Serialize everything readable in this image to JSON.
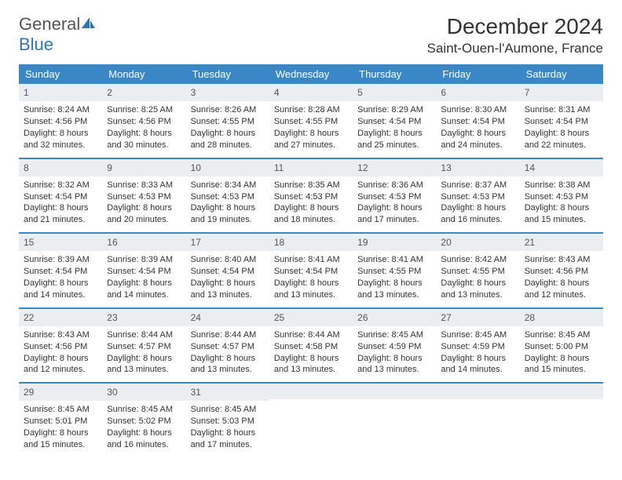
{
  "brand": {
    "part1": "General",
    "part2": "Blue"
  },
  "title": "December 2024",
  "location": "Saint-Ouen-l'Aumone, France",
  "styling": {
    "header_bg": "#3a87c8",
    "header_text": "#ffffff",
    "daynum_bg": "#ebeef0",
    "week_divider": "#3a87c8",
    "body_text": "#333333",
    "page_bg": "#ffffff",
    "title_fontsize": 28,
    "location_fontsize": 17,
    "dow_fontsize": 13,
    "cell_fontsize": 11
  },
  "days_of_week": [
    "Sunday",
    "Monday",
    "Tuesday",
    "Wednesday",
    "Thursday",
    "Friday",
    "Saturday"
  ],
  "weeks": [
    [
      {
        "n": "1",
        "sunrise": "Sunrise: 8:24 AM",
        "sunset": "Sunset: 4:56 PM",
        "dl1": "Daylight: 8 hours",
        "dl2": "and 32 minutes."
      },
      {
        "n": "2",
        "sunrise": "Sunrise: 8:25 AM",
        "sunset": "Sunset: 4:56 PM",
        "dl1": "Daylight: 8 hours",
        "dl2": "and 30 minutes."
      },
      {
        "n": "3",
        "sunrise": "Sunrise: 8:26 AM",
        "sunset": "Sunset: 4:55 PM",
        "dl1": "Daylight: 8 hours",
        "dl2": "and 28 minutes."
      },
      {
        "n": "4",
        "sunrise": "Sunrise: 8:28 AM",
        "sunset": "Sunset: 4:55 PM",
        "dl1": "Daylight: 8 hours",
        "dl2": "and 27 minutes."
      },
      {
        "n": "5",
        "sunrise": "Sunrise: 8:29 AM",
        "sunset": "Sunset: 4:54 PM",
        "dl1": "Daylight: 8 hours",
        "dl2": "and 25 minutes."
      },
      {
        "n": "6",
        "sunrise": "Sunrise: 8:30 AM",
        "sunset": "Sunset: 4:54 PM",
        "dl1": "Daylight: 8 hours",
        "dl2": "and 24 minutes."
      },
      {
        "n": "7",
        "sunrise": "Sunrise: 8:31 AM",
        "sunset": "Sunset: 4:54 PM",
        "dl1": "Daylight: 8 hours",
        "dl2": "and 22 minutes."
      }
    ],
    [
      {
        "n": "8",
        "sunrise": "Sunrise: 8:32 AM",
        "sunset": "Sunset: 4:54 PM",
        "dl1": "Daylight: 8 hours",
        "dl2": "and 21 minutes."
      },
      {
        "n": "9",
        "sunrise": "Sunrise: 8:33 AM",
        "sunset": "Sunset: 4:53 PM",
        "dl1": "Daylight: 8 hours",
        "dl2": "and 20 minutes."
      },
      {
        "n": "10",
        "sunrise": "Sunrise: 8:34 AM",
        "sunset": "Sunset: 4:53 PM",
        "dl1": "Daylight: 8 hours",
        "dl2": "and 19 minutes."
      },
      {
        "n": "11",
        "sunrise": "Sunrise: 8:35 AM",
        "sunset": "Sunset: 4:53 PM",
        "dl1": "Daylight: 8 hours",
        "dl2": "and 18 minutes."
      },
      {
        "n": "12",
        "sunrise": "Sunrise: 8:36 AM",
        "sunset": "Sunset: 4:53 PM",
        "dl1": "Daylight: 8 hours",
        "dl2": "and 17 minutes."
      },
      {
        "n": "13",
        "sunrise": "Sunrise: 8:37 AM",
        "sunset": "Sunset: 4:53 PM",
        "dl1": "Daylight: 8 hours",
        "dl2": "and 16 minutes."
      },
      {
        "n": "14",
        "sunrise": "Sunrise: 8:38 AM",
        "sunset": "Sunset: 4:53 PM",
        "dl1": "Daylight: 8 hours",
        "dl2": "and 15 minutes."
      }
    ],
    [
      {
        "n": "15",
        "sunrise": "Sunrise: 8:39 AM",
        "sunset": "Sunset: 4:54 PM",
        "dl1": "Daylight: 8 hours",
        "dl2": "and 14 minutes."
      },
      {
        "n": "16",
        "sunrise": "Sunrise: 8:39 AM",
        "sunset": "Sunset: 4:54 PM",
        "dl1": "Daylight: 8 hours",
        "dl2": "and 14 minutes."
      },
      {
        "n": "17",
        "sunrise": "Sunrise: 8:40 AM",
        "sunset": "Sunset: 4:54 PM",
        "dl1": "Daylight: 8 hours",
        "dl2": "and 13 minutes."
      },
      {
        "n": "18",
        "sunrise": "Sunrise: 8:41 AM",
        "sunset": "Sunset: 4:54 PM",
        "dl1": "Daylight: 8 hours",
        "dl2": "and 13 minutes."
      },
      {
        "n": "19",
        "sunrise": "Sunrise: 8:41 AM",
        "sunset": "Sunset: 4:55 PM",
        "dl1": "Daylight: 8 hours",
        "dl2": "and 13 minutes."
      },
      {
        "n": "20",
        "sunrise": "Sunrise: 8:42 AM",
        "sunset": "Sunset: 4:55 PM",
        "dl1": "Daylight: 8 hours",
        "dl2": "and 13 minutes."
      },
      {
        "n": "21",
        "sunrise": "Sunrise: 8:43 AM",
        "sunset": "Sunset: 4:56 PM",
        "dl1": "Daylight: 8 hours",
        "dl2": "and 12 minutes."
      }
    ],
    [
      {
        "n": "22",
        "sunrise": "Sunrise: 8:43 AM",
        "sunset": "Sunset: 4:56 PM",
        "dl1": "Daylight: 8 hours",
        "dl2": "and 12 minutes."
      },
      {
        "n": "23",
        "sunrise": "Sunrise: 8:44 AM",
        "sunset": "Sunset: 4:57 PM",
        "dl1": "Daylight: 8 hours",
        "dl2": "and 13 minutes."
      },
      {
        "n": "24",
        "sunrise": "Sunrise: 8:44 AM",
        "sunset": "Sunset: 4:57 PM",
        "dl1": "Daylight: 8 hours",
        "dl2": "and 13 minutes."
      },
      {
        "n": "25",
        "sunrise": "Sunrise: 8:44 AM",
        "sunset": "Sunset: 4:58 PM",
        "dl1": "Daylight: 8 hours",
        "dl2": "and 13 minutes."
      },
      {
        "n": "26",
        "sunrise": "Sunrise: 8:45 AM",
        "sunset": "Sunset: 4:59 PM",
        "dl1": "Daylight: 8 hours",
        "dl2": "and 13 minutes."
      },
      {
        "n": "27",
        "sunrise": "Sunrise: 8:45 AM",
        "sunset": "Sunset: 4:59 PM",
        "dl1": "Daylight: 8 hours",
        "dl2": "and 14 minutes."
      },
      {
        "n": "28",
        "sunrise": "Sunrise: 8:45 AM",
        "sunset": "Sunset: 5:00 PM",
        "dl1": "Daylight: 8 hours",
        "dl2": "and 15 minutes."
      }
    ],
    [
      {
        "n": "29",
        "sunrise": "Sunrise: 8:45 AM",
        "sunset": "Sunset: 5:01 PM",
        "dl1": "Daylight: 8 hours",
        "dl2": "and 15 minutes."
      },
      {
        "n": "30",
        "sunrise": "Sunrise: 8:45 AM",
        "sunset": "Sunset: 5:02 PM",
        "dl1": "Daylight: 8 hours",
        "dl2": "and 16 minutes."
      },
      {
        "n": "31",
        "sunrise": "Sunrise: 8:45 AM",
        "sunset": "Sunset: 5:03 PM",
        "dl1": "Daylight: 8 hours",
        "dl2": "and 17 minutes."
      },
      {
        "empty": true
      },
      {
        "empty": true
      },
      {
        "empty": true
      },
      {
        "empty": true
      }
    ]
  ]
}
